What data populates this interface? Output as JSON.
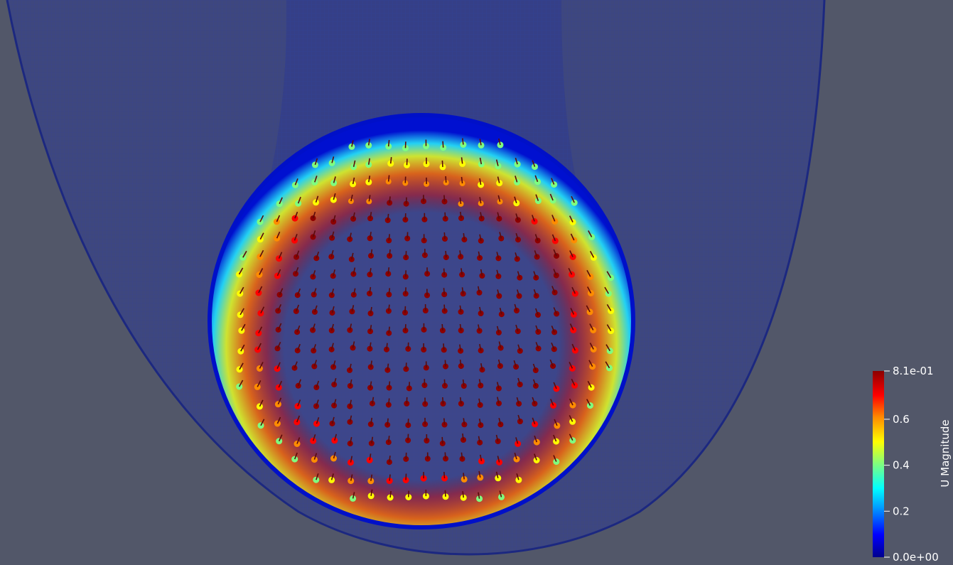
{
  "viewport": {
    "background_color": "#525769"
  },
  "color_legend": {
    "title": "U Magnitude",
    "ticks": [
      {
        "label": "8.1e-01"
      },
      {
        "label": "0.6"
      },
      {
        "label": "0.4"
      },
      {
        "label": "0.2"
      },
      {
        "label": "0.0e+00"
      }
    ],
    "range": [
      0.0,
      0.81
    ],
    "tick_values": [
      0.81,
      0.6,
      0.4,
      0.2,
      0.0
    ],
    "colormap": [
      "#00008c",
      "#0000ff",
      "#00a0ff",
      "#00ffff",
      "#7fff7f",
      "#ffff00",
      "#ff8c00",
      "#ff0000",
      "#8c0000"
    ]
  },
  "scene": {
    "container_color": "#2e3a8f",
    "droplet_rim_color": "#0a1fb0",
    "glyph_core_color": "#b3121a",
    "icons": [
      "vector-glyph-icon"
    ]
  }
}
